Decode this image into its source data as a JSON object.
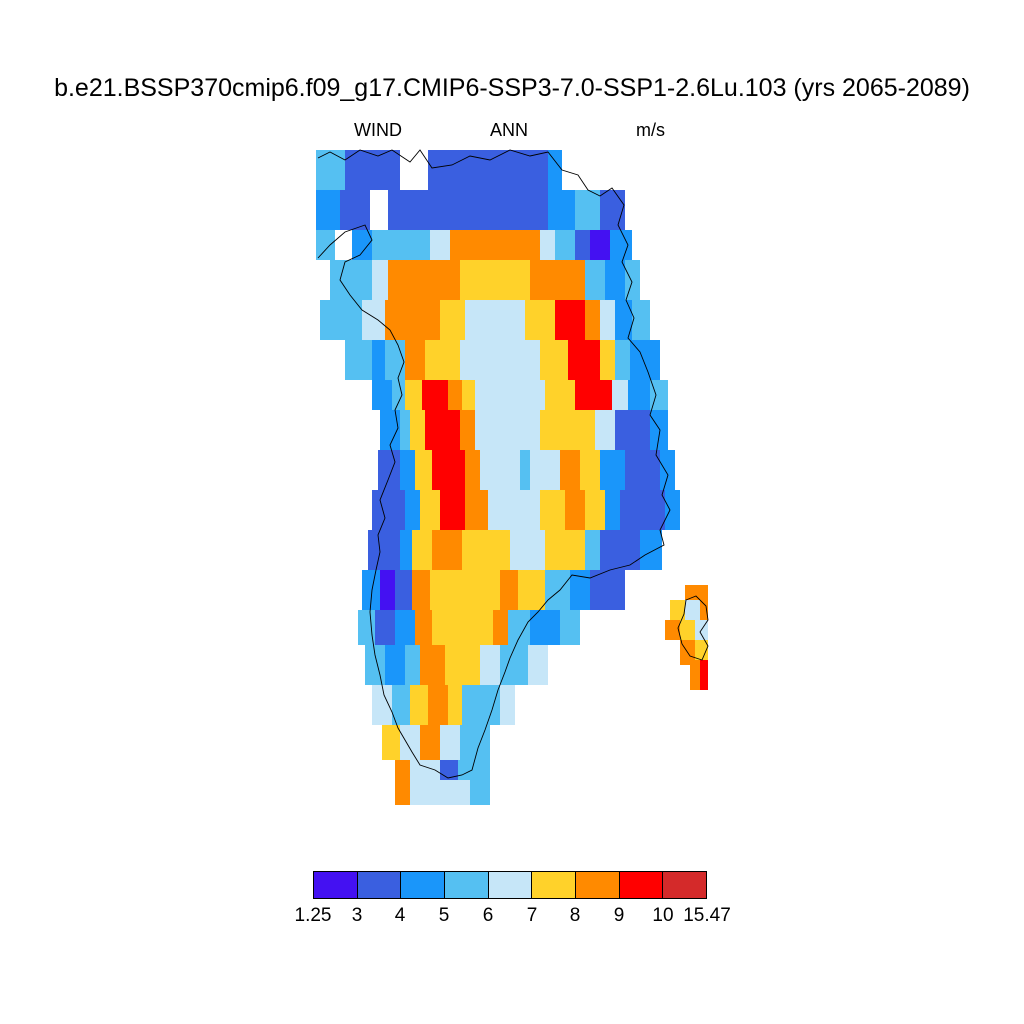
{
  "header": {
    "title": "b.e21.BSSP370cmip6.f09_g17.CMIP6-SSP3-7.0-SSP1-2.6Lu.103 (yrs 2065-2089)",
    "variable": "WIND",
    "season": "ANN",
    "units": "m/s"
  },
  "colorbar": {
    "labels": [
      "1.25",
      "3",
      "4",
      "5",
      "6",
      "7",
      "8",
      "9",
      "10",
      "15.47"
    ],
    "colors": [
      "#4411f2",
      "#3a5fe0",
      "#1a96fa",
      "#55c0f2",
      "#c6e6f8",
      "#ffd22a",
      "#ff8a00",
      "#ff0000",
      "#d42a2a"
    ]
  },
  "map": {
    "region": "Greenland",
    "field": "annual mean wind speed"
  }
}
